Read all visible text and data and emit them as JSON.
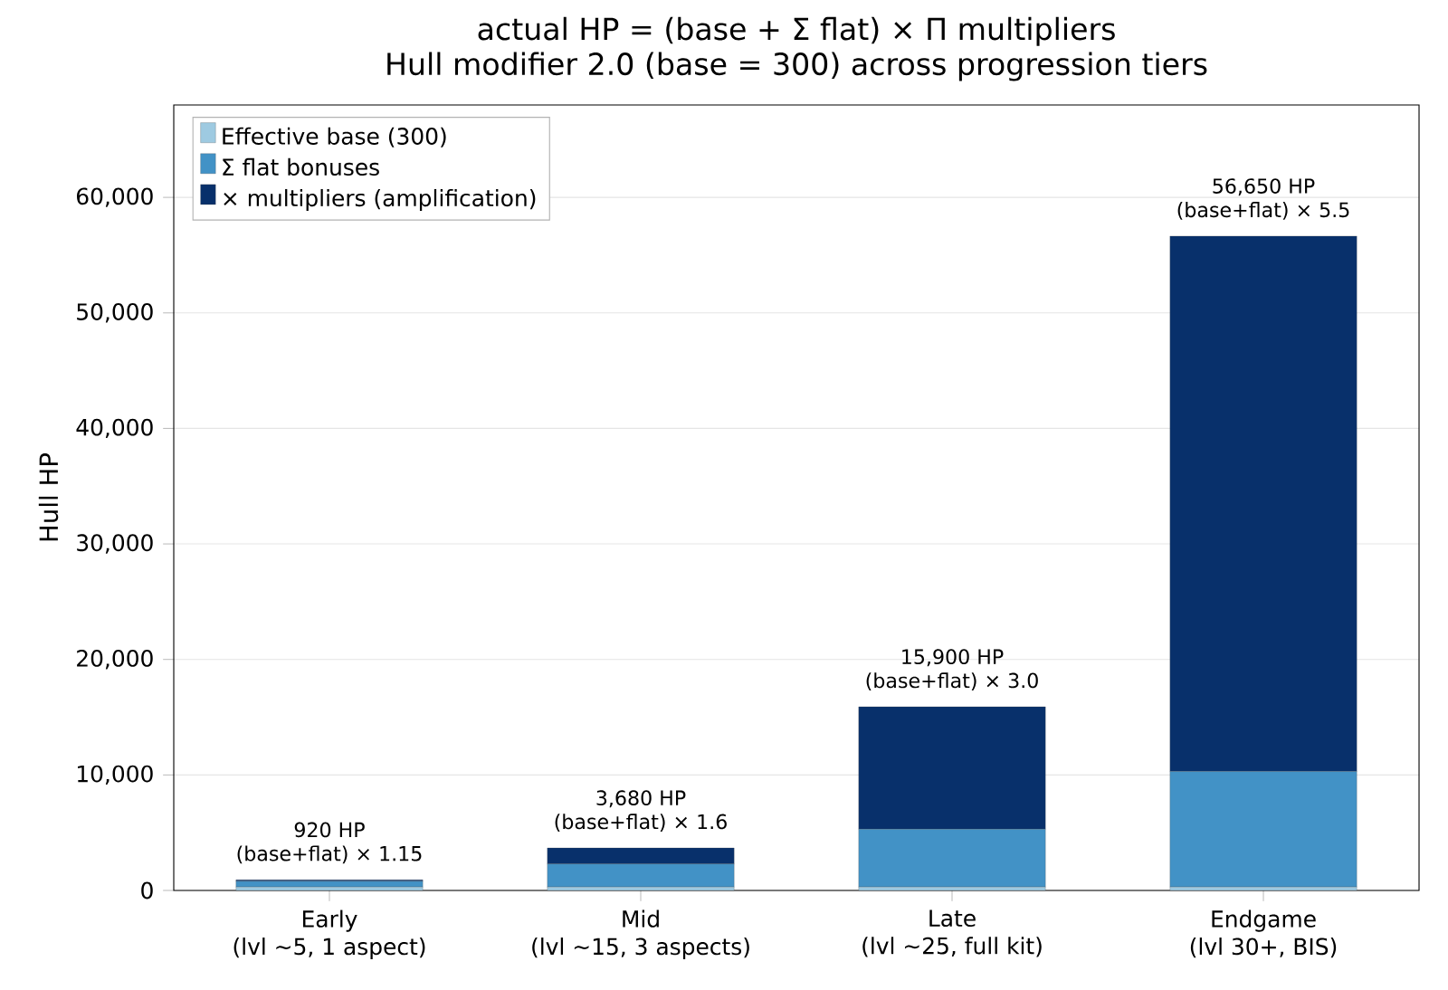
{
  "chart_data": {
    "type": "bar",
    "title": "actual HP = (base + Σ flat) × Π multipliers",
    "subtitle": "Hull modifier 2.0 (base = 300) across progression tiers",
    "ylabel": "Hull HP",
    "categories": [
      "Early\n(lvl ~5, 1 aspect)",
      "Mid\n(lvl ~15, 3 aspects)",
      "Late\n(lvl ~25, full kit)",
      "Endgame\n(lvl 30+, BIS)"
    ],
    "stacked": true,
    "series": [
      {
        "name": "Effective base (300)",
        "color": "#9ecae1",
        "values": [
          300,
          300,
          300,
          300
        ]
      },
      {
        "name": "Σ flat bonuses",
        "color": "#4292c6",
        "values": [
          500,
          2000,
          5000,
          10000
        ]
      },
      {
        "name": "× multipliers (amplification)",
        "color": "#08306b",
        "values": [
          120,
          1380,
          10600,
          46350
        ]
      }
    ],
    "totals": [
      "920 HP",
      "3,680 HP",
      "15,900 HP",
      "56,650 HP"
    ],
    "annotations": [
      {
        "text": "(base+flat) × 1.15",
        "x": "Early\n(lvl ~5, 1 aspect)",
        "y": 920
      },
      {
        "text": "(base+flat) × 1.6",
        "x": "Mid\n(lvl ~15, 3 aspects)",
        "y": 3680
      },
      {
        "text": "(base+flat) × 3.0",
        "x": "Late\n(lvl ~25, full kit)",
        "y": 15900
      },
      {
        "text": "(base+flat) × 5.5",
        "x": "Endgame\n(lvl 30+, BIS)",
        "y": 56650
      }
    ],
    "ylim": [
      0,
      68000
    ],
    "yticks": [
      0,
      {
        "value": 10000,
        "label": "10,000"
      },
      {
        "value": 20000,
        "label": "20,000"
      },
      {
        "value": 30000,
        "label": "30,000"
      },
      {
        "value": 40000,
        "label": "40,000"
      },
      {
        "value": 50000,
        "label": "50,000"
      },
      {
        "value": 60000,
        "label": "60,000"
      }
    ],
    "grid": "y",
    "legend": "top left"
  }
}
